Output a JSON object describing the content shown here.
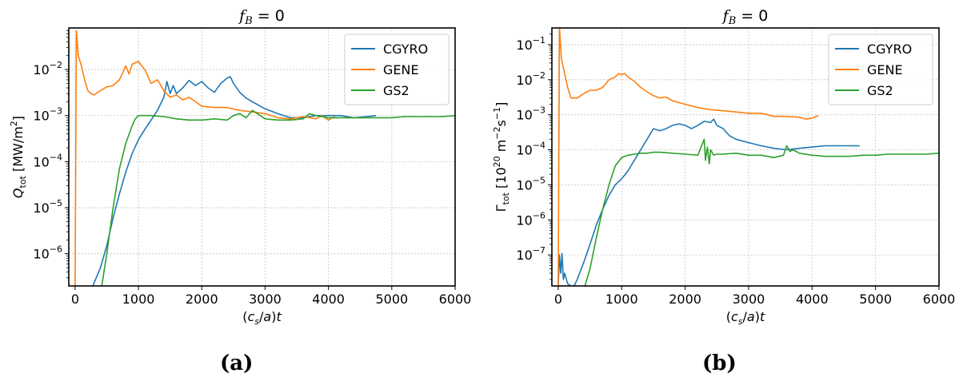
{
  "colors": {
    "CGYRO": "#1f77b4",
    "GENE": "#ff7f0e",
    "GS2": "#2ca02c"
  },
  "captions": {
    "a": "(a)",
    "b": "(b)"
  },
  "chart_data": [
    {
      "type": "line",
      "title": "f_B = 0",
      "title_var": "f",
      "title_sub": "B",
      "title_eq": " = 0",
      "xlabel": "(c_s/a)t",
      "ylabel": "Q_tot [MW/m^2]",
      "ylabel_parts": {
        "sym": "Q",
        "sub": "tot",
        "unit_pre": " [MW/m",
        "unit_sup": "2",
        "unit_post": "]"
      },
      "yscale": "log",
      "xlim": [
        -100,
        6000
      ],
      "ylim": [
        2e-07,
        0.08
      ],
      "xticks": [
        0,
        1000,
        2000,
        3000,
        4000,
        5000,
        6000
      ],
      "yticks": [
        {
          "base": "10",
          "exp": "−6",
          "value": 1e-06
        },
        {
          "base": "10",
          "exp": "−5",
          "value": 1e-05
        },
        {
          "base": "10",
          "exp": "−4",
          "value": 0.0001
        },
        {
          "base": "10",
          "exp": "−3",
          "value": 0.001
        },
        {
          "base": "10",
          "exp": "−2",
          "value": 0.01
        }
      ],
      "grid": true,
      "legend": "top-right",
      "series": [
        {
          "name": "CGYRO",
          "x": [
            280,
            400,
            500,
            600,
            700,
            800,
            900,
            1000,
            1100,
            1200,
            1300,
            1400,
            1450,
            1500,
            1550,
            1600,
            1700,
            1800,
            1900,
            2000,
            2100,
            2200,
            2300,
            2400,
            2450,
            2500,
            2600,
            2700,
            2800,
            3000,
            3200,
            3400,
            3600,
            3800,
            4000,
            4200,
            4400,
            4600,
            4750
          ],
          "y": [
            2e-07,
            5e-07,
            1.5e-06,
            6e-06,
            2e-05,
            6e-05,
            0.00015,
            0.0003,
            0.0005,
            0.0008,
            0.0013,
            0.0025,
            0.0055,
            0.003,
            0.0045,
            0.003,
            0.004,
            0.0058,
            0.0045,
            0.0055,
            0.004,
            0.0032,
            0.005,
            0.0065,
            0.007,
            0.005,
            0.0032,
            0.0024,
            0.002,
            0.0014,
            0.0011,
            0.0009,
            0.0009,
            0.001,
            0.001,
            0.001,
            0.0009,
            0.00095,
            0.001
          ]
        },
        {
          "name": "GENE",
          "x": [
            0,
            20,
            50,
            100,
            150,
            200,
            250,
            300,
            400,
            500,
            600,
            700,
            800,
            850,
            900,
            950,
            1000,
            1050,
            1100,
            1200,
            1300,
            1400,
            1500,
            1600,
            1700,
            1800,
            1900,
            2000,
            2200,
            2400,
            2600,
            2800,
            3000,
            3200,
            3400,
            3600,
            3800,
            3900,
            4000,
            4100
          ],
          "y": [
            2e-07,
            0.07,
            0.02,
            0.012,
            0.006,
            0.0035,
            0.003,
            0.0028,
            0.0035,
            0.0042,
            0.0045,
            0.006,
            0.012,
            0.008,
            0.013,
            0.014,
            0.015,
            0.012,
            0.01,
            0.005,
            0.006,
            0.0035,
            0.0025,
            0.0028,
            0.0022,
            0.0025,
            0.002,
            0.0016,
            0.0015,
            0.0015,
            0.0013,
            0.0012,
            0.0011,
            0.0009,
            0.00085,
            0.00095,
            0.00085,
            0.001,
            0.0008,
            0.00095
          ]
        },
        {
          "name": "GS2",
          "x": [
            420,
            500,
            600,
            700,
            800,
            900,
            950,
            1000,
            1100,
            1200,
            1400,
            1600,
            1800,
            2000,
            2200,
            2400,
            2500,
            2600,
            2700,
            2800,
            3000,
            3200,
            3400,
            3600,
            3700,
            3800,
            4000,
            4200,
            4400,
            4600,
            4800,
            5000,
            5200,
            5400,
            5600,
            5800,
            6000
          ],
          "y": [
            2e-07,
            1e-06,
            1e-05,
            7e-05,
            0.00025,
            0.0006,
            0.00085,
            0.001,
            0.001,
            0.001,
            0.00095,
            0.00085,
            0.0008,
            0.0008,
            0.00085,
            0.0008,
            0.001,
            0.0011,
            0.0009,
            0.0013,
            0.00085,
            0.0008,
            0.0008,
            0.00085,
            0.0011,
            0.001,
            0.0009,
            0.0009,
            0.0009,
            0.0009,
            0.0009,
            0.0009,
            0.00095,
            0.00095,
            0.00095,
            0.00095,
            0.001
          ]
        }
      ]
    },
    {
      "type": "line",
      "title": "f_B = 0",
      "title_var": "f",
      "title_sub": "B",
      "title_eq": " = 0",
      "xlabel": "(c_s/a)t",
      "ylabel": "Γ_tot [10^20 m^-2 s^-1]",
      "ylabel_parts": {
        "sym": "Γ",
        "sub": "tot",
        "unit_pre": " [10",
        "unit_sup": "20",
        "unit_mid": " m",
        "unit_sup2": "−2",
        "unit_mid2": "s",
        "unit_sup3": "−1",
        "unit_post": "]"
      },
      "yscale": "log",
      "xlim": [
        -100,
        6000
      ],
      "ylim": [
        1.3e-08,
        0.3
      ],
      "xticks": [
        0,
        1000,
        2000,
        3000,
        4000,
        5000,
        6000
      ],
      "yticks": [
        {
          "base": "10",
          "exp": "−7",
          "value": 1e-07
        },
        {
          "base": "10",
          "exp": "−6",
          "value": 1e-06
        },
        {
          "base": "10",
          "exp": "−5",
          "value": 1e-05
        },
        {
          "base": "10",
          "exp": "−4",
          "value": 0.0001
        },
        {
          "base": "10",
          "exp": "−3",
          "value": 0.001
        },
        {
          "base": "10",
          "exp": "−2",
          "value": 0.01
        },
        {
          "base": "10",
          "exp": "−1",
          "value": 0.1
        }
      ],
      "grid": true,
      "legend": "top-right",
      "series": [
        {
          "name": "CGYRO",
          "x": [
            0,
            20,
            40,
            60,
            80,
            100,
            150,
            200,
            250,
            300,
            400,
            500,
            600,
            700,
            800,
            900,
            1000,
            1100,
            1200,
            1300,
            1400,
            1500,
            1600,
            1700,
            1800,
            1900,
            2000,
            2100,
            2200,
            2300,
            2400,
            2450,
            2500,
            2600,
            2700,
            2800,
            3000,
            3200,
            3400,
            3600,
            3800,
            4000,
            4200,
            4400,
            4600,
            4750
          ],
          "y": [
            1.3e-08,
            1e-07,
            3e-08,
            1.1e-07,
            2e-08,
            3e-08,
            1.5e-08,
            1.3e-08,
            1.3e-08,
            2e-08,
            6e-08,
            2e-07,
            7e-07,
            2e-06,
            5e-06,
            1e-05,
            1.5e-05,
            2.5e-05,
            5e-05,
            0.0001,
            0.0002,
            0.0004,
            0.00035,
            0.0004,
            0.0005,
            0.00055,
            0.0005,
            0.0004,
            0.0005,
            0.00065,
            0.0006,
            0.00075,
            0.0005,
            0.0004,
            0.00025,
            0.0002,
            0.00016,
            0.00013,
            0.00011,
            0.0001,
            0.00011,
            0.00012,
            0.00013,
            0.00013,
            0.00013,
            0.00013
          ]
        },
        {
          "name": "GENE",
          "x": [
            0,
            20,
            50,
            100,
            150,
            200,
            300,
            400,
            500,
            600,
            700,
            800,
            900,
            950,
            1000,
            1050,
            1100,
            1200,
            1300,
            1400,
            1500,
            1600,
            1700,
            1800,
            2000,
            2200,
            2400,
            2600,
            2800,
            3000,
            3200,
            3400,
            3600,
            3800,
            3900,
            4000,
            4100
          ],
          "y": [
            1.3e-08,
            0.3,
            0.04,
            0.015,
            0.006,
            0.003,
            0.003,
            0.004,
            0.005,
            0.005,
            0.006,
            0.01,
            0.012,
            0.015,
            0.014,
            0.015,
            0.012,
            0.009,
            0.006,
            0.0045,
            0.0035,
            0.003,
            0.0032,
            0.0025,
            0.002,
            0.0016,
            0.0014,
            0.0013,
            0.0012,
            0.0011,
            0.0011,
            0.0009,
            0.0009,
            0.00085,
            0.00075,
            0.0008,
            0.00095
          ]
        },
        {
          "name": "GS2",
          "x": [
            420,
            500,
            600,
            700,
            800,
            900,
            1000,
            1100,
            1200,
            1300,
            1400,
            1500,
            1600,
            1800,
            2000,
            2200,
            2300,
            2320,
            2350,
            2380,
            2400,
            2450,
            2500,
            2600,
            2800,
            3000,
            3200,
            3400,
            3550,
            3600,
            3650,
            3700,
            3800,
            4000,
            4200,
            4400,
            4600,
            4800,
            5000,
            5200,
            5400,
            5600,
            5800,
            6000
          ],
          "y": [
            1.3e-08,
            4e-08,
            3e-07,
            2e-06,
            1e-05,
            3.5e-05,
            6e-05,
            7e-05,
            7.5e-05,
            8e-05,
            8e-05,
            8.5e-05,
            8.5e-05,
            8e-05,
            7.5e-05,
            7e-05,
            0.0002,
            5e-05,
            0.00012,
            4e-05,
            0.0001,
            7e-05,
            7.5e-05,
            7.5e-05,
            8e-05,
            7e-05,
            7e-05,
            6e-05,
            7e-05,
            0.00013,
            9e-05,
            0.0001,
            8e-05,
            7e-05,
            6.5e-05,
            6.5e-05,
            6.5e-05,
            7e-05,
            7e-05,
            7.5e-05,
            7.5e-05,
            7.5e-05,
            7.5e-05,
            8e-05
          ]
        }
      ]
    }
  ]
}
